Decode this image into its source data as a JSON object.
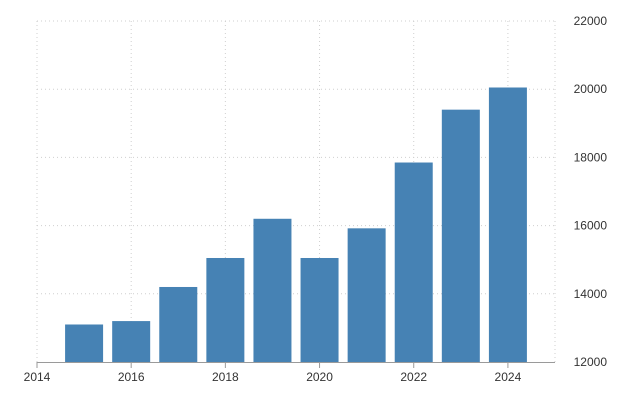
{
  "chart_data": {
    "type": "bar",
    "title": "",
    "xlabel": "",
    "ylabel": "",
    "x": [
      2015,
      2016,
      2017,
      2018,
      2019,
      2020,
      2021,
      2022,
      2023,
      2024
    ],
    "values": [
      13100,
      13200,
      14200,
      15050,
      16200,
      15050,
      15920,
      17850,
      19400,
      20050
    ],
    "xlim": [
      2014,
      2025
    ],
    "ylim": [
      12000,
      22000
    ],
    "xticks": [
      "2014",
      "2016",
      "2018",
      "2020",
      "2022",
      "2024"
    ],
    "yticks": [
      "12000",
      "14000",
      "16000",
      "18000",
      "20000",
      "22000"
    ],
    "y_axis_side": "right",
    "grid": true,
    "legend": "none",
    "bar_color": "#4682b4"
  }
}
